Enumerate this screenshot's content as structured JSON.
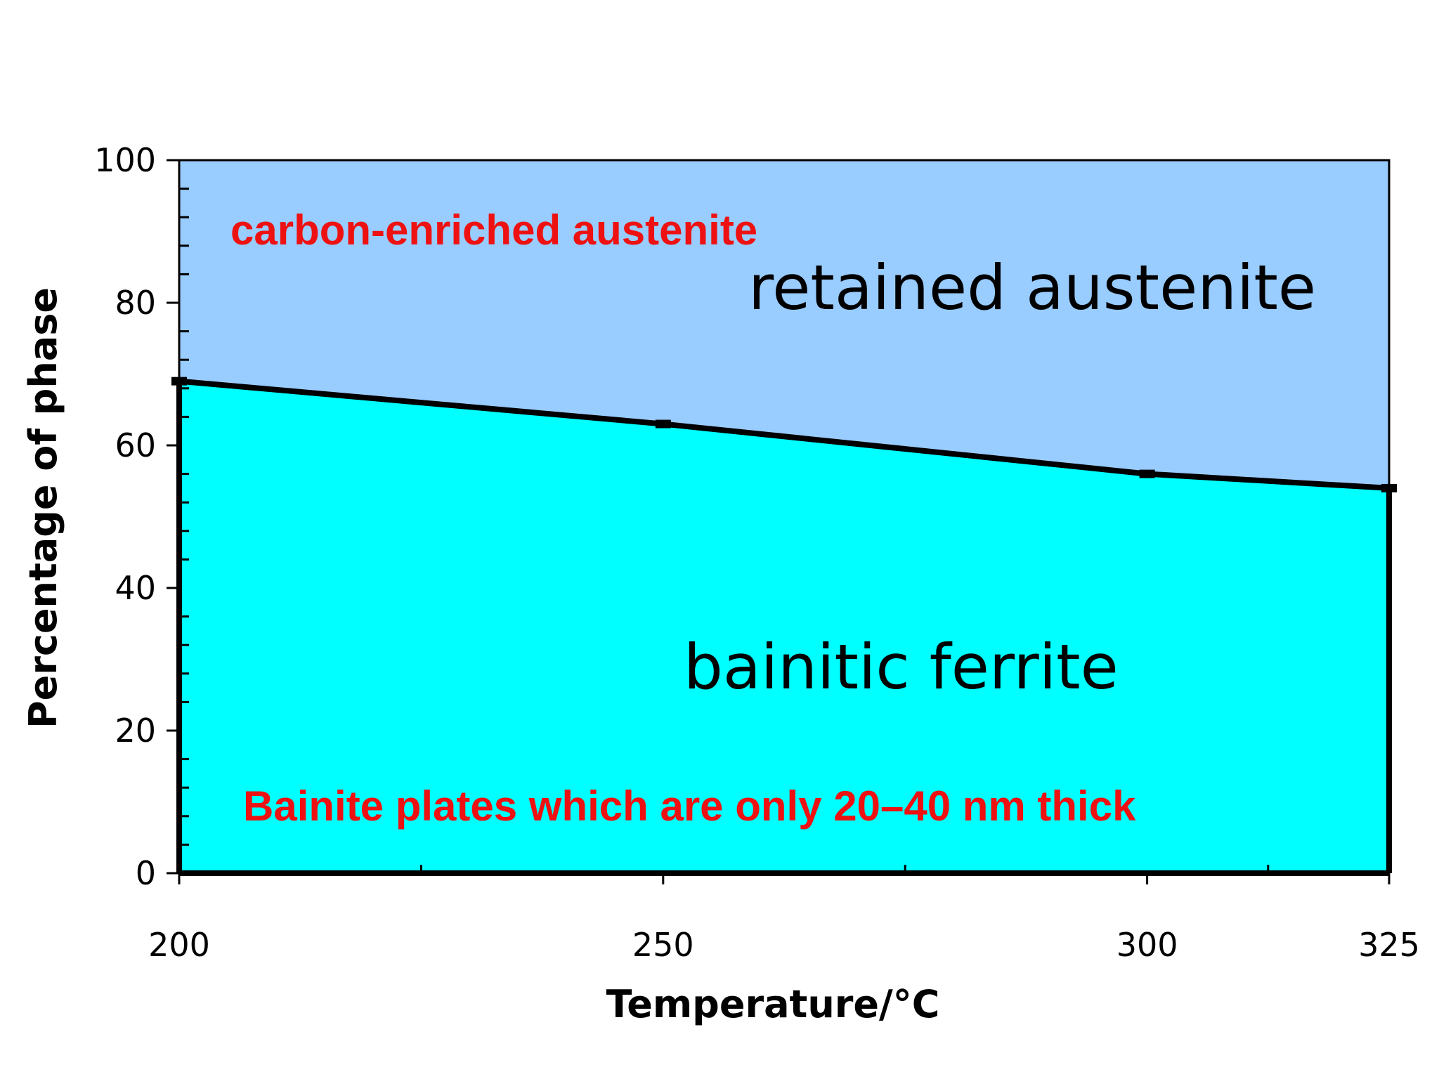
{
  "chart_data": {
    "type": "area",
    "x": [
      200,
      250,
      300,
      325
    ],
    "series": [
      {
        "name": "bainitic ferrite",
        "values": [
          69,
          63,
          56,
          54
        ]
      },
      {
        "name": "retained austenite",
        "values": [
          31,
          37,
          44,
          46
        ]
      }
    ],
    "region_labels": {
      "upper": "retained austenite",
      "lower": "bainitic ferrite"
    },
    "annotations": {
      "upper": "carbon-enriched austenite",
      "lower": "Bainite plates which are only 20–40 nm thick"
    },
    "xlabel": "Temperature/°C",
    "ylabel": "Percentage of phase",
    "xlim": [
      200,
      325
    ],
    "ylim": [
      0,
      100
    ],
    "xticks": [
      200,
      250,
      300,
      325
    ],
    "xticks_minor": [
      225,
      275,
      312.5
    ],
    "yticks": [
      0,
      20,
      40,
      60,
      80,
      100
    ],
    "ytick_step_minor": 4,
    "grid": false,
    "colors": {
      "upper_fill": "#99ccff",
      "lower_fill": "#00ffff",
      "annotation": "#ee1111",
      "line": "#000000"
    }
  }
}
